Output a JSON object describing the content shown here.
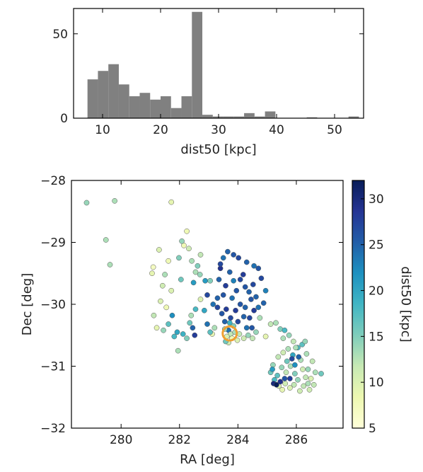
{
  "chart_data": [
    {
      "type": "bar",
      "name": "histogram",
      "xlabel": "dist50 [kpc]",
      "ylabel": "",
      "xlim": [
        5,
        55
      ],
      "ylim": [
        0,
        65
      ],
      "xticks": [
        10,
        20,
        30,
        40,
        50
      ],
      "yticks": [
        0,
        50
      ],
      "bar_color": "#808080",
      "bin_edges": [
        7.4,
        9.2,
        11.0,
        12.8,
        14.6,
        16.4,
        18.2,
        20.0,
        21.8,
        23.6,
        25.4,
        27.2,
        29.0,
        30.8,
        32.6,
        34.4,
        36.2,
        38.0,
        39.8,
        41.6,
        43.4,
        45.2,
        47.0,
        48.8,
        50.6,
        52.4,
        54.2
      ],
      "values": [
        23,
        28,
        32,
        20,
        13,
        15,
        11,
        13,
        6,
        13,
        63,
        2,
        1,
        1,
        1,
        3,
        1,
        4,
        0,
        0,
        0,
        0.5,
        0,
        0,
        0,
        1
      ]
    },
    {
      "type": "scatter",
      "name": "sky-map",
      "xlabel": "RA [deg]",
      "ylabel": "Dec [deg]",
      "xlim": [
        278.3,
        287.6
      ],
      "ylim": [
        -32,
        -28
      ],
      "xticks": [
        280,
        282,
        284,
        286
      ],
      "yticks": [
        -28,
        -29,
        -30,
        -31,
        -32
      ],
      "colorbar": {
        "label": "dist50 [kpc]",
        "min": 5,
        "max": 32,
        "ticks": [
          5,
          10,
          15,
          20,
          25,
          30
        ],
        "colormap": "YlGnBu"
      },
      "marker": {
        "type": "ring",
        "ra": 283.72,
        "dec": -30.47,
        "color": "#f0a030"
      },
      "points": [
        [
          278.82,
          -28.36,
          14
        ],
        [
          279.48,
          -28.96,
          13
        ],
        [
          279.62,
          -29.36,
          13
        ],
        [
          279.78,
          -28.33,
          13
        ],
        [
          281.72,
          -28.35,
          9
        ],
        [
          281.06,
          -29.5,
          9
        ],
        [
          281.1,
          -29.4,
          7
        ],
        [
          281.3,
          -29.12,
          10
        ],
        [
          281.5,
          -29.52,
          13
        ],
        [
          281.62,
          -29.3,
          8
        ],
        [
          281.72,
          -29.78,
          10
        ],
        [
          281.42,
          -29.7,
          11
        ],
        [
          281.55,
          -30.05,
          8
        ],
        [
          281.35,
          -29.95,
          10
        ],
        [
          281.12,
          -30.18,
          12
        ],
        [
          281.22,
          -30.38,
          9
        ],
        [
          281.45,
          -30.42,
          14
        ],
        [
          281.62,
          -30.32,
          17
        ],
        [
          281.75,
          -30.18,
          22
        ],
        [
          281.82,
          -30.52,
          18
        ],
        [
          281.92,
          -30.45,
          20
        ],
        [
          282.05,
          -29.6,
          16
        ],
        [
          281.98,
          -29.25,
          15
        ],
        [
          282.15,
          -29.05,
          8
        ],
        [
          282.08,
          -28.98,
          14
        ],
        [
          282.25,
          -28.82,
          8
        ],
        [
          282.32,
          -29.1,
          11
        ],
        [
          282.42,
          -29.3,
          13
        ],
        [
          282.48,
          -29.65,
          21
        ],
        [
          282.55,
          -29.48,
          13
        ],
        [
          282.62,
          -29.38,
          15
        ],
        [
          282.7,
          -29.52,
          14
        ],
        [
          282.72,
          -29.92,
          10
        ],
        [
          282.55,
          -30.08,
          18
        ],
        [
          282.4,
          -30.18,
          13
        ],
        [
          282.45,
          -30.38,
          25
        ],
        [
          282.52,
          -30.5,
          28
        ],
        [
          282.25,
          -30.55,
          15
        ],
        [
          282.12,
          -30.48,
          19
        ],
        [
          282.35,
          -30.3,
          16
        ],
        [
          282.88,
          -29.62,
          21
        ],
        [
          282.95,
          -29.85,
          27
        ],
        [
          283.05,
          -29.62,
          15
        ],
        [
          282.95,
          -30.32,
          24
        ],
        [
          283.12,
          -30.48,
          9
        ],
        [
          283.2,
          -30.38,
          13
        ],
        [
          283.05,
          -30.45,
          17
        ],
        [
          282.85,
          -30.1,
          20
        ],
        [
          281.95,
          -30.75,
          13
        ],
        [
          282.72,
          -29.2,
          12
        ],
        [
          283.4,
          -29.42,
          29
        ],
        [
          283.35,
          -29.6,
          25
        ],
        [
          283.58,
          -29.7,
          28
        ],
        [
          283.72,
          -29.48,
          25
        ],
        [
          283.85,
          -29.62,
          23
        ],
        [
          283.5,
          -29.85,
          26
        ],
        [
          283.3,
          -29.9,
          25
        ],
        [
          283.15,
          -30.0,
          24
        ],
        [
          283.3,
          -30.05,
          27
        ],
        [
          283.6,
          -30.08,
          28
        ],
        [
          283.8,
          -29.9,
          24
        ],
        [
          283.95,
          -29.78,
          26
        ],
        [
          284.08,
          -29.6,
          27
        ],
        [
          284.18,
          -29.52,
          28
        ],
        [
          284.25,
          -29.72,
          26
        ],
        [
          284.38,
          -29.8,
          25
        ],
        [
          284.52,
          -29.68,
          27
        ],
        [
          284.45,
          -29.92,
          26
        ],
        [
          284.62,
          -29.88,
          25
        ],
        [
          284.7,
          -30.05,
          24
        ],
        [
          284.55,
          -30.1,
          28
        ],
        [
          284.4,
          -30.22,
          27
        ],
        [
          284.25,
          -30.05,
          25
        ],
        [
          284.08,
          -30.0,
          26
        ],
        [
          283.92,
          -30.1,
          28
        ],
        [
          283.75,
          -30.22,
          27
        ],
        [
          283.55,
          -30.28,
          25
        ],
        [
          283.45,
          -30.15,
          26
        ],
        [
          284.0,
          -30.28,
          27
        ],
        [
          284.2,
          -30.2,
          25
        ],
        [
          284.3,
          -30.38,
          24
        ],
        [
          284.48,
          -30.38,
          26
        ],
        [
          284.62,
          -30.45,
          14
        ],
        [
          284.75,
          -30.22,
          13
        ],
        [
          284.88,
          -29.98,
          25
        ],
        [
          284.95,
          -29.78,
          23
        ],
        [
          284.8,
          -29.58,
          27
        ],
        [
          284.7,
          -29.42,
          26
        ],
        [
          284.55,
          -29.38,
          24
        ],
        [
          284.3,
          -29.32,
          25
        ],
        [
          284.02,
          -29.25,
          27
        ],
        [
          283.85,
          -29.2,
          26
        ],
        [
          283.65,
          -29.15,
          25
        ],
        [
          283.5,
          -29.25,
          24
        ],
        [
          283.4,
          -29.35,
          27
        ],
        [
          283.68,
          -30.42,
          24
        ],
        [
          283.75,
          -30.48,
          12
        ],
        [
          283.62,
          -30.52,
          10
        ],
        [
          283.8,
          -30.55,
          8
        ],
        [
          283.68,
          -30.62,
          11
        ],
        [
          283.9,
          -30.45,
          13
        ],
        [
          283.85,
          -30.35,
          15
        ],
        [
          284.05,
          -30.48,
          12
        ],
        [
          283.98,
          -30.58,
          10
        ],
        [
          283.55,
          -30.4,
          14
        ],
        [
          283.58,
          -30.6,
          16
        ],
        [
          283.72,
          -30.3,
          19
        ],
        [
          284.2,
          -30.55,
          11
        ],
        [
          284.35,
          -30.5,
          14
        ],
        [
          284.5,
          -30.55,
          12
        ],
        [
          284.95,
          -30.52,
          9
        ],
        [
          285.12,
          -30.32,
          12
        ],
        [
          285.3,
          -30.3,
          13
        ],
        [
          285.45,
          -30.4,
          15
        ],
        [
          285.6,
          -30.42,
          18
        ],
        [
          285.55,
          -30.55,
          13
        ],
        [
          285.75,
          -30.5,
          14
        ],
        [
          285.9,
          -30.6,
          12
        ],
        [
          286.05,
          -30.7,
          18
        ],
        [
          286.15,
          -30.9,
          13
        ],
        [
          286.22,
          -31.05,
          11
        ],
        [
          286.32,
          -31.18,
          12
        ],
        [
          286.4,
          -31.05,
          14
        ],
        [
          286.5,
          -31.2,
          10
        ],
        [
          286.65,
          -31.1,
          13
        ],
        [
          286.85,
          -31.12,
          16
        ],
        [
          286.55,
          -30.92,
          12
        ],
        [
          286.35,
          -30.8,
          13
        ],
        [
          286.2,
          -30.65,
          17
        ],
        [
          285.88,
          -30.82,
          20
        ],
        [
          285.72,
          -30.72,
          13
        ],
        [
          285.55,
          -30.78,
          11
        ],
        [
          285.38,
          -30.85,
          12
        ],
        [
          285.2,
          -30.98,
          14
        ],
        [
          285.12,
          -31.1,
          16
        ],
        [
          285.25,
          -31.22,
          18
        ],
        [
          285.4,
          -31.32,
          10
        ],
        [
          285.52,
          -31.38,
          9
        ],
        [
          285.62,
          -31.28,
          11
        ],
        [
          285.78,
          -31.35,
          10
        ],
        [
          285.92,
          -31.3,
          12
        ],
        [
          286.05,
          -31.22,
          14
        ],
        [
          286.12,
          -31.4,
          11
        ],
        [
          286.25,
          -31.32,
          12
        ],
        [
          286.4,
          -31.28,
          13
        ],
        [
          285.95,
          -31.12,
          15
        ],
        [
          285.8,
          -31.0,
          13
        ],
        [
          285.65,
          -31.1,
          12
        ],
        [
          285.5,
          -31.02,
          14
        ],
        [
          285.68,
          -30.92,
          16
        ],
        [
          285.95,
          -30.98,
          22
        ],
        [
          286.08,
          -30.85,
          25
        ],
        [
          285.85,
          -30.88,
          27
        ],
        [
          285.78,
          -31.2,
          28
        ],
        [
          285.6,
          -31.2,
          26
        ],
        [
          285.22,
          -31.28,
          30
        ],
        [
          285.32,
          -31.3,
          32
        ],
        [
          285.45,
          -31.25,
          29
        ],
        [
          285.18,
          -31.05,
          21
        ],
        [
          285.35,
          -31.15,
          17
        ],
        [
          285.98,
          -30.7,
          13
        ],
        [
          286.3,
          -30.6,
          14
        ],
        [
          286.6,
          -31.3,
          12
        ],
        [
          286.45,
          -31.38,
          11
        ]
      ]
    }
  ]
}
